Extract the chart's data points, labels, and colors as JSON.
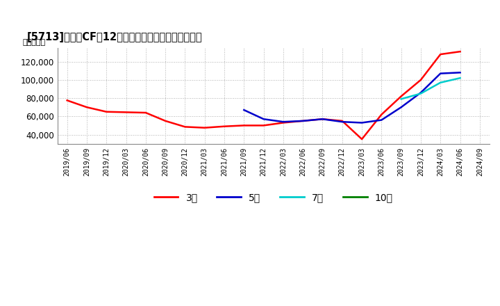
{
  "title": "[5713]　投賄CFだ12か月移動合計の標準偏差の推移",
  "ylabel": "（百万円）",
  "ylim": [
    30000,
    135000
  ],
  "yticks": [
    40000,
    60000,
    80000,
    100000,
    120000
  ],
  "background_color": "#ffffff",
  "grid_color": "#b0b0b0",
  "series": {
    "3年": {
      "color": "#ff0000",
      "dates": [
        "2019/06",
        "2019/09",
        "2019/12",
        "2020/03",
        "2020/06",
        "2020/09",
        "2020/12",
        "2021/03",
        "2021/06",
        "2021/09",
        "2021/12",
        "2022/03",
        "2022/06",
        "2022/09",
        "2022/12",
        "2023/03",
        "2023/06",
        "2023/09",
        "2023/12",
        "2024/03",
        "2024/06"
      ],
      "values": [
        77500,
        70000,
        65000,
        64500,
        64000,
        55000,
        48500,
        47500,
        49000,
        50000,
        50000,
        53000,
        55000,
        57000,
        55000,
        35000,
        62000,
        82000,
        100000,
        128000,
        131000
      ]
    },
    "5年": {
      "color": "#0000cc",
      "dates": [
        "2021/09",
        "2021/12",
        "2022/03",
        "2022/06",
        "2022/09",
        "2022/12",
        "2023/03",
        "2023/06",
        "2023/09",
        "2023/12",
        "2024/03",
        "2024/06"
      ],
      "values": [
        67000,
        57000,
        54000,
        55000,
        57000,
        54000,
        53000,
        56000,
        70000,
        86000,
        107000,
        108000
      ]
    },
    "7年": {
      "color": "#00cccc",
      "dates": [
        "2023/09",
        "2023/12",
        "2024/03",
        "2024/06"
      ],
      "values": [
        79000,
        85000,
        97000,
        102000
      ]
    },
    "10年": {
      "color": "#008000",
      "dates": [],
      "values": []
    }
  },
  "legend_labels": [
    "3年",
    "5年",
    "7年",
    "10年"
  ],
  "legend_colors": [
    "#ff0000",
    "#0000cc",
    "#00cccc",
    "#008000"
  ],
  "xticklabels": [
    "2019/06",
    "2019/09",
    "2019/12",
    "2020/03",
    "2020/06",
    "2020/09",
    "2020/12",
    "2021/03",
    "2021/06",
    "2021/09",
    "2021/12",
    "2022/03",
    "2022/06",
    "2022/09",
    "2022/12",
    "2023/03",
    "2023/06",
    "2023/09",
    "2023/12",
    "2024/03",
    "2024/06",
    "2024/09"
  ]
}
